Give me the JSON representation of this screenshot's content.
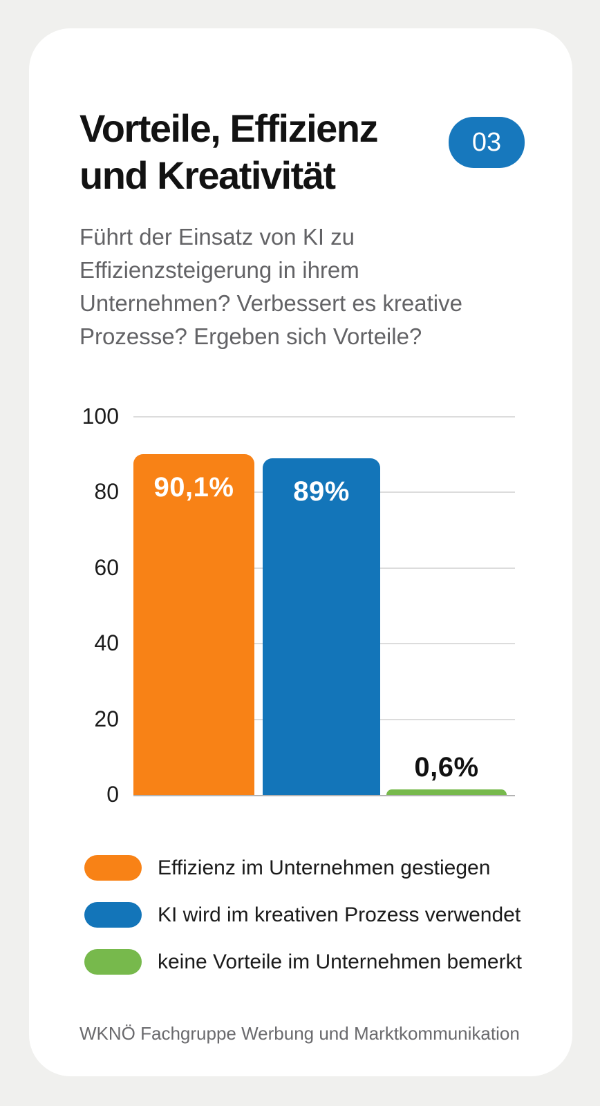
{
  "header": {
    "title_line1": "Vorteile, Effizienz",
    "title_line2": "und Kreativität",
    "badge": "03",
    "badge_color": "#1778bd"
  },
  "subtitle": {
    "lines": [
      "Führt der Einsatz von KI zu",
      "Effizienzsteigerung in ihrem",
      "Unternehmen? Verbessert es kreative",
      "Prozesse? Ergeben sich Vorteile?"
    ]
  },
  "chart_data": {
    "type": "bar",
    "title": "",
    "xlabel": "",
    "ylabel": "",
    "ylim": [
      0,
      100
    ],
    "yticks": [
      100,
      80,
      60,
      40,
      20,
      0
    ],
    "grid": true,
    "legend_position": "bottom",
    "categories": [
      "Effizienz im Unternehmen gestiegen",
      "KI wird im kreativen Prozess verwendet",
      "keine Vorteile im Unternehmen bemerkt"
    ],
    "series": [
      {
        "name": "Effizienz im Unternehmen gestiegen",
        "value": 90.1,
        "label": "90,1%",
        "color": "#f88216",
        "label_position": "inside",
        "label_color": "#ffffff"
      },
      {
        "name": "KI wird im kreativen Prozess verwendet",
        "value": 89,
        "label": "89%",
        "color": "#1375b9",
        "label_position": "inside",
        "label_color": "#ffffff"
      },
      {
        "name": "keine Vorteile im Unternehmen bemerkt",
        "value": 0.6,
        "label": "0,6%",
        "color": "#77b94c",
        "label_position": "above",
        "label_color": "#111111"
      }
    ]
  },
  "footer": {
    "source": "WKNÖ Fachgruppe Werbung und Marktkommunikation"
  }
}
